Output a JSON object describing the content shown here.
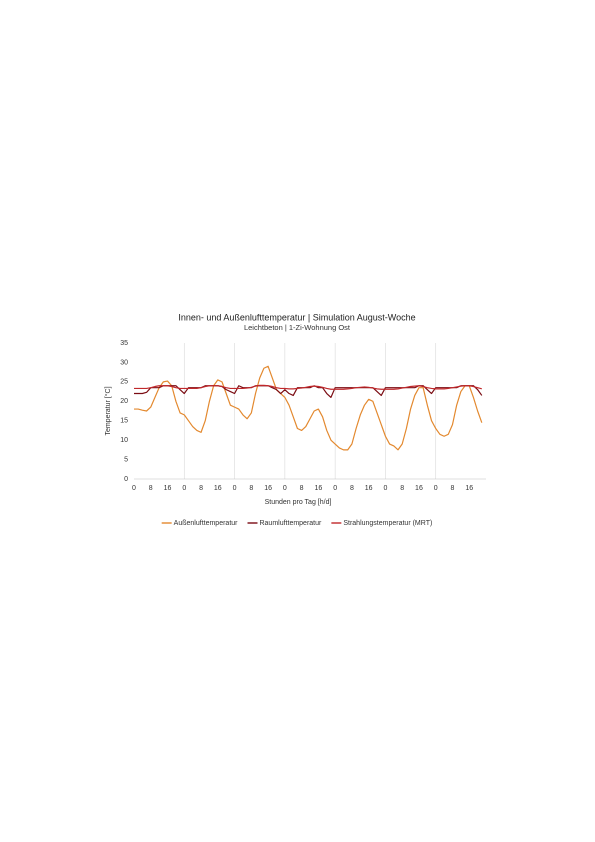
{
  "chart_data": {
    "type": "line",
    "title": "Innen- und Außenlufttemperatur | Simulation August-Woche",
    "subtitle": "Leichtbeton | 1-Zi-Wohnung Ost",
    "x_label": "Stunden pro Tag [h/d]",
    "y_label": "Temperatur [°C]",
    "xlim": [
      0,
      168
    ],
    "ylim": [
      0,
      35
    ],
    "yticks": [
      0,
      5,
      10,
      15,
      20,
      25,
      30,
      35
    ],
    "xticks": [
      0,
      8,
      16,
      {
        "value": 24,
        "label": "0"
      },
      {
        "value": 32,
        "label": "8"
      },
      {
        "value": 40,
        "label": "16"
      },
      {
        "value": 48,
        "label": "0"
      },
      {
        "value": 56,
        "label": "8"
      },
      {
        "value": 64,
        "label": "16"
      },
      {
        "value": 72,
        "label": "0"
      },
      {
        "value": 80,
        "label": "8"
      },
      {
        "value": 88,
        "label": "16"
      },
      {
        "value": 96,
        "label": "0"
      },
      {
        "value": 104,
        "label": "8"
      },
      {
        "value": 112,
        "label": "16"
      },
      {
        "value": 120,
        "label": "0"
      },
      {
        "value": 128,
        "label": "8"
      },
      {
        "value": 136,
        "label": "16"
      },
      {
        "value": 144,
        "label": "0"
      },
      {
        "value": 152,
        "label": "8"
      },
      {
        "value": 160,
        "label": "16"
      }
    ],
    "xgrid": [
      24,
      48,
      72,
      96,
      120,
      144
    ],
    "legend": "bottom",
    "x": [
      0,
      2,
      4,
      6,
      8,
      10,
      12,
      14,
      16,
      18,
      20,
      22,
      24,
      26,
      28,
      30,
      32,
      34,
      36,
      38,
      40,
      42,
      44,
      46,
      48,
      50,
      52,
      54,
      56,
      58,
      60,
      62,
      64,
      66,
      68,
      70,
      72,
      74,
      76,
      78,
      80,
      82,
      84,
      86,
      88,
      90,
      92,
      94,
      96,
      98,
      100,
      102,
      104,
      106,
      108,
      110,
      112,
      114,
      116,
      118,
      120,
      122,
      124,
      126,
      128,
      130,
      132,
      134,
      136,
      138,
      140,
      142,
      144,
      146,
      148,
      150,
      152,
      154,
      156,
      158,
      160,
      162,
      164,
      166
    ],
    "series": [
      {
        "name": "Außenlufttemperatur",
        "color": "#e3892f",
        "values": [
          18,
          18,
          17.7,
          17.5,
          18.5,
          21,
          23.5,
          25,
          25.2,
          24,
          20,
          17,
          16.5,
          15,
          13.5,
          12.5,
          12,
          15,
          20,
          24,
          25.5,
          25,
          22,
          19,
          18.5,
          18,
          16.5,
          15.5,
          17,
          22,
          26,
          28.5,
          29,
          26,
          23,
          22,
          21,
          19,
          16,
          13,
          12.5,
          13.5,
          15.5,
          17.5,
          18,
          16,
          12.5,
          10,
          9,
          8,
          7.5,
          7.5,
          9,
          13,
          16.5,
          19,
          20.5,
          20,
          17,
          14,
          11,
          9,
          8.5,
          7.5,
          9,
          13,
          18,
          21.5,
          23.5,
          23.5,
          19,
          15,
          13,
          11.5,
          11,
          11.5,
          14,
          19,
          22.5,
          24,
          24,
          21,
          17.5,
          14.5
        ]
      },
      {
        "name": "Raumlufttemperatur",
        "color": "#7b0c13",
        "values": [
          22,
          22,
          22,
          22.3,
          23.5,
          23.5,
          23.5,
          24,
          24,
          24,
          24,
          23,
          22,
          23.5,
          23.5,
          23.5,
          23.5,
          24,
          24,
          24,
          24,
          23.8,
          23,
          22.5,
          22,
          24,
          23.5,
          23.5,
          23.5,
          24,
          24,
          24,
          24,
          23.5,
          23,
          22,
          23,
          22,
          21.5,
          23.5,
          23.5,
          23.5,
          23.5,
          24,
          23.5,
          23.5,
          22,
          21,
          23.5,
          23.5,
          23.5,
          23.5,
          23.5,
          23.5,
          23.5,
          23.5,
          23.5,
          23.5,
          22.5,
          21.5,
          23.5,
          23.5,
          23.5,
          23.5,
          23.5,
          23.5,
          23.5,
          23.5,
          24,
          24,
          23,
          22,
          23.5,
          23.5,
          23.5,
          23.5,
          23.5,
          23.5,
          24,
          24,
          24,
          24,
          23,
          21.5
        ]
      },
      {
        "name": "Strahlungstemperatur (MRT)",
        "color": "#c0282b",
        "values": [
          23.3,
          23.3,
          23.3,
          23.3,
          23.5,
          23.8,
          24,
          24,
          24,
          23.8,
          23.5,
          23.3,
          23.3,
          23.3,
          23.3,
          23.3,
          23.5,
          23.8,
          24,
          24,
          24,
          23.8,
          23.5,
          23.3,
          23.3,
          23.3,
          23.3,
          23.4,
          23.6,
          23.9,
          24.1,
          24.1,
          24,
          23.8,
          23.5,
          23.3,
          23.3,
          23.2,
          23.2,
          23.3,
          23.4,
          23.6,
          23.8,
          23.9,
          23.8,
          23.6,
          23.3,
          23.1,
          23.1,
          23.1,
          23.1,
          23.2,
          23.3,
          23.5,
          23.6,
          23.7,
          23.6,
          23.4,
          23.2,
          23.1,
          23.1,
          23.1,
          23.1,
          23.2,
          23.4,
          23.6,
          23.8,
          23.9,
          24,
          23.8,
          23.5,
          23.3,
          23.2,
          23.2,
          23.2,
          23.3,
          23.5,
          23.7,
          23.9,
          24,
          24,
          23.8,
          23.5,
          23.2
        ]
      }
    ]
  }
}
